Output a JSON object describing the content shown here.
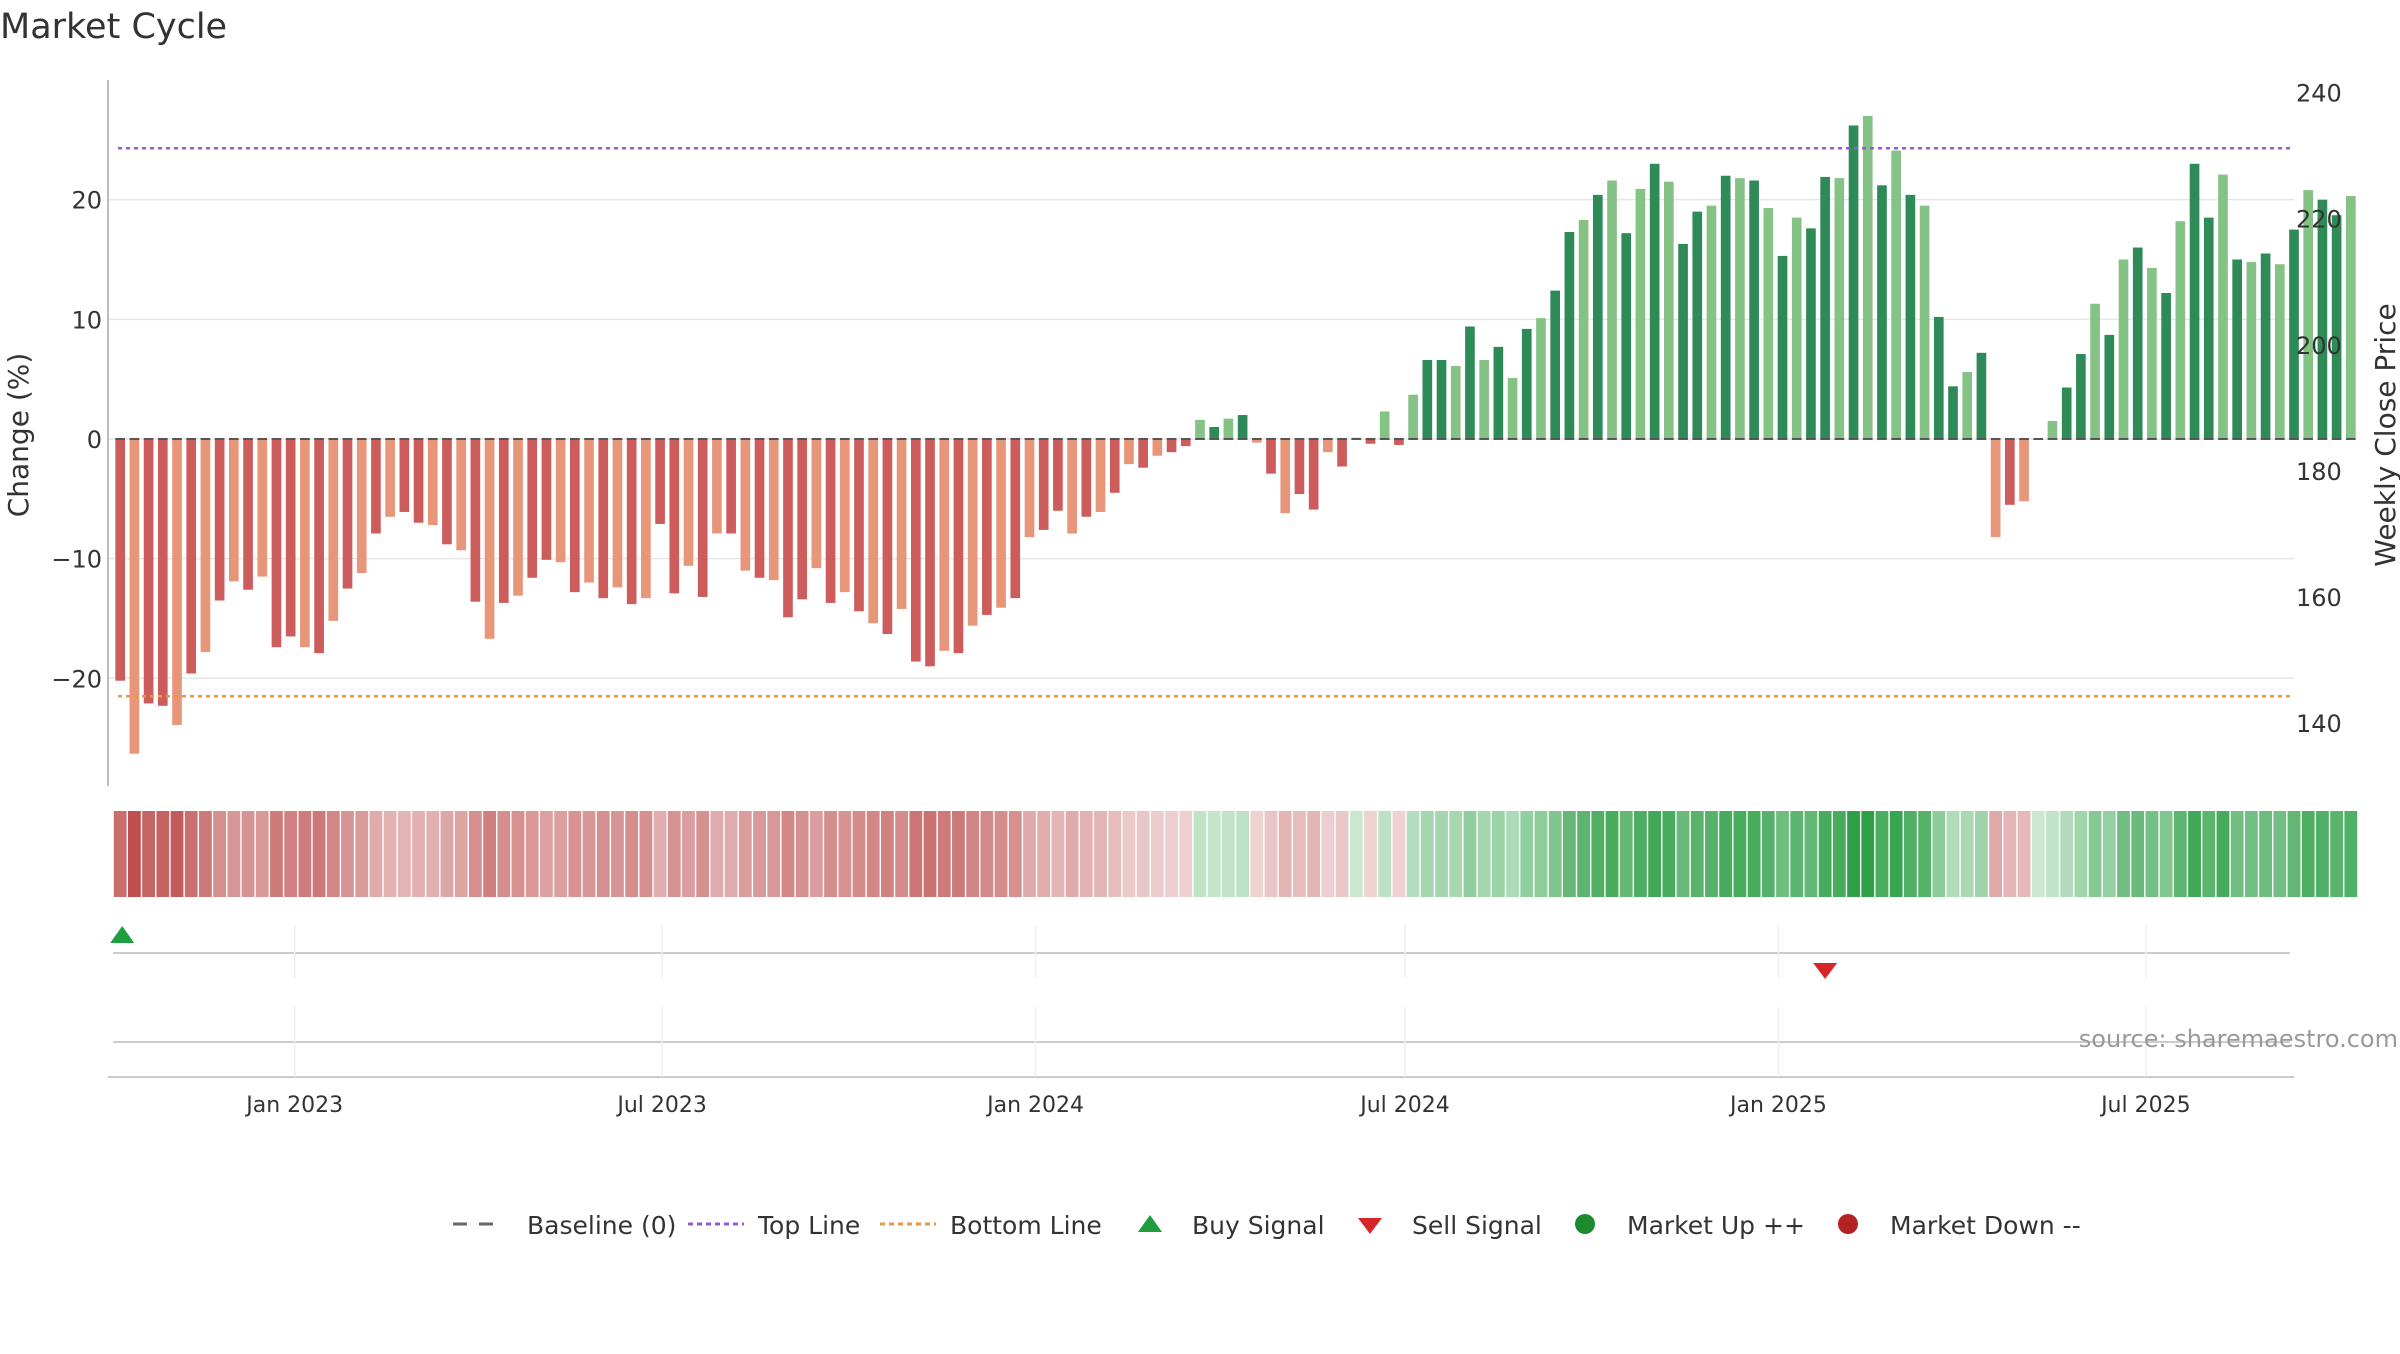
{
  "chart_data": {
    "type": "bar",
    "title": "Market Cycle",
    "ylabel_left": "Change (%)",
    "ylabel_right": "Weekly Close Price",
    "ylim_left": [
      -29,
      30
    ],
    "ylim_right": [
      130,
      242
    ],
    "yticks_left": [
      -20,
      -10,
      0,
      10,
      20
    ],
    "yticks_right": [
      140,
      160,
      180,
      200,
      220,
      240
    ],
    "reference_lines": {
      "baseline": 0,
      "top_line": 24.3,
      "bottom_line": -21.5
    },
    "x_start": "2022-10-01",
    "x_end": "2025-09-12",
    "x_ticks": [
      {
        "date": "2023-01-01",
        "label": "Jan 2023"
      },
      {
        "date": "2023-07-01",
        "label": "Jul 2023"
      },
      {
        "date": "2024-01-01",
        "label": "Jan 2024"
      },
      {
        "date": "2024-07-01",
        "label": "Jul 2024"
      },
      {
        "date": "2025-01-01",
        "label": "Jan 2025"
      },
      {
        "date": "2025-07-01",
        "label": "Jul 2025"
      }
    ],
    "first_week": "2022-10-07",
    "weekly_change": [
      -20.2,
      -26.3,
      -22.1,
      -22.3,
      -23.9,
      -19.6,
      -17.8,
      -13.5,
      -11.9,
      -12.6,
      -11.5,
      -17.4,
      -16.5,
      -17.4,
      -17.9,
      -15.2,
      -12.5,
      -11.2,
      -7.9,
      -6.5,
      -6.1,
      -7.0,
      -7.2,
      -8.8,
      -9.3,
      -13.6,
      -16.7,
      -13.7,
      -13.1,
      -11.6,
      -10.1,
      -10.3,
      -12.8,
      -12.0,
      -13.3,
      -12.4,
      -13.8,
      -13.3,
      -7.1,
      -12.9,
      -10.6,
      -13.2,
      -7.9,
      -7.9,
      -11.0,
      -11.6,
      -11.8,
      -14.9,
      -13.4,
      -10.8,
      -13.7,
      -12.8,
      -14.4,
      -15.4,
      -16.3,
      -14.2,
      -18.6,
      -19.0,
      -17.7,
      -17.9,
      -15.6,
      -14.7,
      -14.1,
      -13.3,
      -8.2,
      -7.6,
      -6.0,
      -7.9,
      -6.5,
      -6.1,
      -4.5,
      -2.1,
      -2.4,
      -1.4,
      -1.1,
      -0.6,
      1.6,
      1.0,
      1.7,
      2.0,
      -0.3,
      -2.9,
      -6.2,
      -4.6,
      -5.9,
      -1.1,
      -2.3,
      0.1,
      -0.4,
      2.3,
      -0.5,
      3.7,
      6.6,
      6.6,
      6.1,
      9.4,
      6.6,
      7.7,
      5.1,
      9.2,
      10.1,
      12.4,
      17.3,
      18.3,
      20.4,
      21.6,
      17.2,
      20.9,
      23.0,
      21.5,
      16.3,
      19.0,
      19.5,
      22.0,
      21.8,
      21.6,
      19.3,
      15.3,
      18.5,
      17.6,
      21.9,
      21.8,
      26.2,
      27.0,
      21.2,
      24.1,
      20.4,
      19.5,
      10.2,
      4.4,
      5.6,
      7.2,
      -8.2,
      -5.5,
      -5.2,
      0.0,
      1.5,
      4.3,
      7.1,
      11.3,
      8.7,
      15.0,
      16.0,
      14.3,
      12.2,
      18.2,
      23.0,
      18.5,
      22.1,
      15.0,
      14.8,
      15.5,
      14.6,
      17.5,
      20.8,
      20.0,
      18.7,
      20.3
    ],
    "signals": [
      {
        "type": "buy",
        "date": "2022-10-08"
      },
      {
        "type": "sell",
        "date": "2025-01-24"
      }
    ],
    "source_text": "source: sharemaestro.com",
    "legend": [
      {
        "label": "Baseline (0)",
        "symbol": "dash",
        "color": "#666666"
      },
      {
        "label": "Top Line",
        "symbol": "dot",
        "color": "#9b59d0"
      },
      {
        "label": "Bottom Line",
        "symbol": "dot",
        "color": "#e8964a"
      },
      {
        "label": "Buy Signal",
        "symbol": "triangle-up",
        "color": "#1f9e3f"
      },
      {
        "label": "Sell Signal",
        "symbol": "triangle-down",
        "color": "#d62728"
      },
      {
        "label": "Market Up ++",
        "symbol": "circle",
        "color": "#1e8a2e"
      },
      {
        "label": "Market Down --",
        "symbol": "circle",
        "color": "#b22222"
      }
    ],
    "colors": {
      "negative_dark": "#cd5c5c",
      "negative_light": "#e8967a",
      "positive_dark": "#2e8b57",
      "positive_light": "#85c285",
      "top_line": "#9b59d0",
      "bottom_line": "#e8964a",
      "buy": "#1f9e3f",
      "sell": "#d62728"
    }
  }
}
